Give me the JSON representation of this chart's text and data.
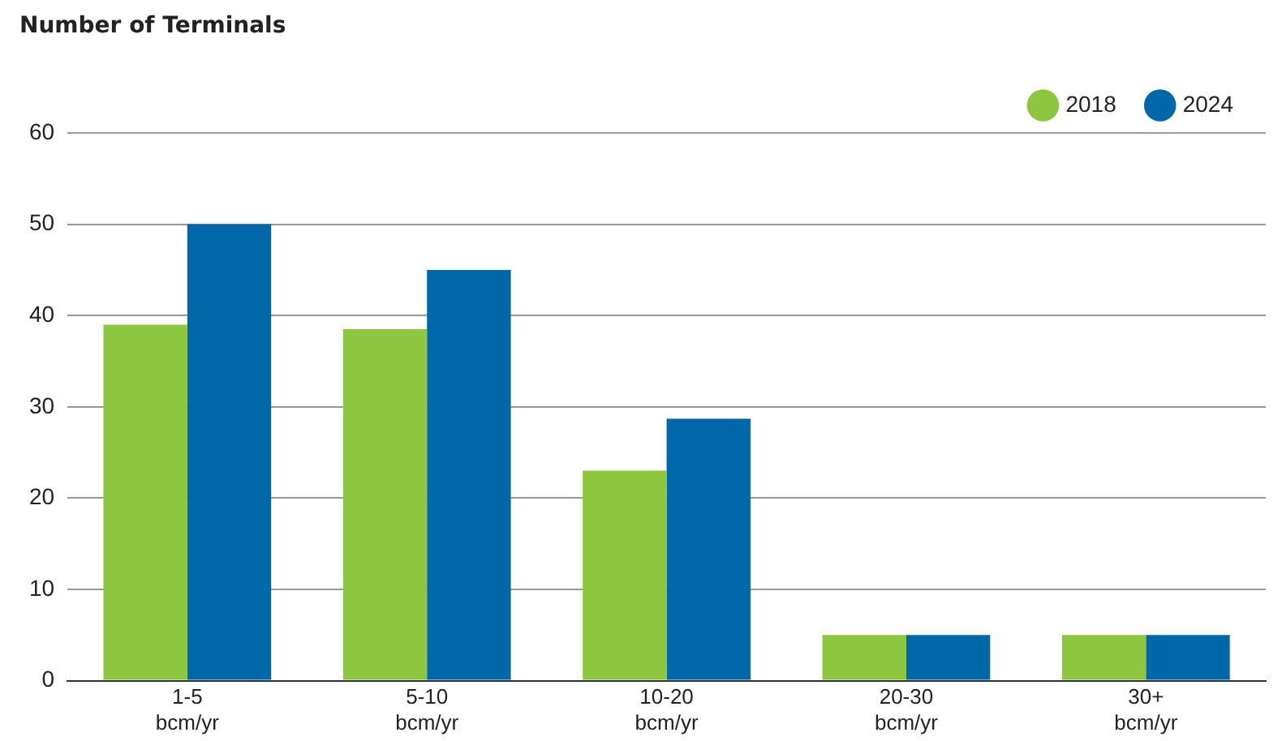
{
  "chart_data": {
    "type": "bar",
    "ylabel": "Number of Terminals",
    "categories": [
      "1-5 bcm/yr",
      "5-10 bcm/yr",
      "10-20 bcm/yr",
      "20-30 bcm/yr",
      "30+ bcm/yr"
    ],
    "series": [
      {
        "name": "2018",
        "color": "#8dc63f",
        "values": [
          39,
          38.5,
          23,
          5,
          5
        ]
      },
      {
        "name": "2024",
        "color": "#0068a8",
        "values": [
          50,
          45,
          28.7,
          5,
          5
        ]
      }
    ],
    "ylim": [
      0,
      60
    ],
    "yticks": [
      0,
      10,
      20,
      30,
      40,
      50,
      60
    ],
    "grid": "y",
    "legend": "top right"
  }
}
